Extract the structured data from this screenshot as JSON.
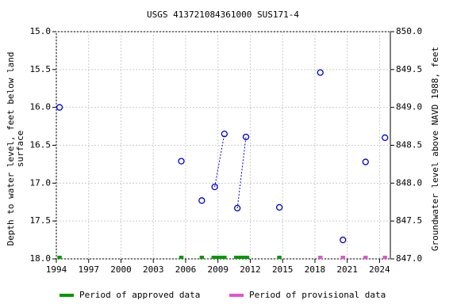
{
  "chart_data": {
    "type": "scatter",
    "title": "USGS 413721084361000 SUS171-4",
    "y_label_lines": [
      "Depth to water level, feet below land",
      "surface"
    ],
    "y2_label": "Groundwater level above NAVD 1988, feet",
    "x": [
      1994.3,
      null,
      2005.6,
      null,
      2007.5,
      null,
      2008.7,
      2009.6,
      null,
      2010.8,
      2011.6,
      null,
      2014.7,
      null,
      2018.5,
      null,
      2020.6,
      null,
      2022.7,
      null,
      2024.5
    ],
    "values": [
      16.0,
      null,
      16.71,
      null,
      17.23,
      null,
      17.05,
      16.35,
      null,
      17.33,
      16.39,
      null,
      17.32,
      null,
      15.54,
      null,
      17.75,
      null,
      16.72,
      null,
      16.4
    ],
    "color": "#0000cc",
    "xlim": [
      1994,
      2025
    ],
    "xticks": [
      1994,
      1997,
      2000,
      2003,
      2006,
      2009,
      2012,
      2015,
      2018,
      2021,
      2024
    ],
    "ylim": [
      15,
      18
    ],
    "yticks": [
      {
        "value": 15,
        "label": "15.0"
      },
      {
        "value": 15.5,
        "label": "15.5"
      },
      {
        "value": 16,
        "label": "16.0"
      },
      {
        "value": 16.5,
        "label": "16.5"
      },
      {
        "value": 17,
        "label": "17.0"
      },
      {
        "value": 17.5,
        "label": "17.5"
      },
      {
        "value": 18,
        "label": "18.0"
      }
    ],
    "y2lim": [
      850,
      847
    ],
    "y2ticks": [
      {
        "value": 850,
        "label": "850.0"
      },
      {
        "value": 849.5,
        "label": "849.5"
      },
      {
        "value": 849,
        "label": "849.0"
      },
      {
        "value": 848.5,
        "label": "848.5"
      },
      {
        "value": 848,
        "label": "848.0"
      },
      {
        "value": 847.5,
        "label": "847.5"
      },
      {
        "value": 847,
        "label": "847.0"
      }
    ],
    "grid": true,
    "periods": [
      {
        "name": "Period of approved data",
        "color": "#009900",
        "ranges": [
          [
            1994.1,
            1994.5
          ],
          [
            2005.4,
            2005.8
          ],
          [
            2007.3,
            2007.7
          ],
          [
            2008.4,
            2009.8
          ],
          [
            2010.5,
            2011.9
          ],
          [
            2014.5,
            2014.9
          ]
        ]
      },
      {
        "name": "Period of provisional data",
        "color": "#e055d0",
        "ranges": [
          [
            2018.3,
            2018.7
          ],
          [
            2020.4,
            2020.8
          ],
          [
            2022.5,
            2022.9
          ],
          [
            2024.3,
            2024.7
          ]
        ]
      }
    ]
  }
}
